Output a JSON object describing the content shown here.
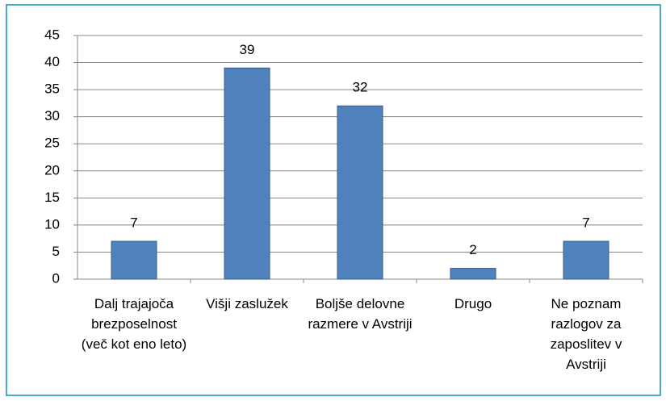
{
  "chart_data": {
    "type": "bar",
    "categories": [
      "Dalj trajajoča brezposelnost (več kot eno leto)",
      "Višji zaslužek",
      "Boljše delovne razmere v Avstriji",
      "Drugo",
      "Ne poznam razlogov za zaposlitev v Avstriji"
    ],
    "values": [
      7,
      39,
      32,
      2,
      7
    ],
    "color": "#4f81bd",
    "ylim": [
      0,
      45
    ],
    "yticks": [
      0,
      5,
      10,
      15,
      20,
      25,
      30,
      35,
      40,
      45
    ],
    "grid": true
  }
}
